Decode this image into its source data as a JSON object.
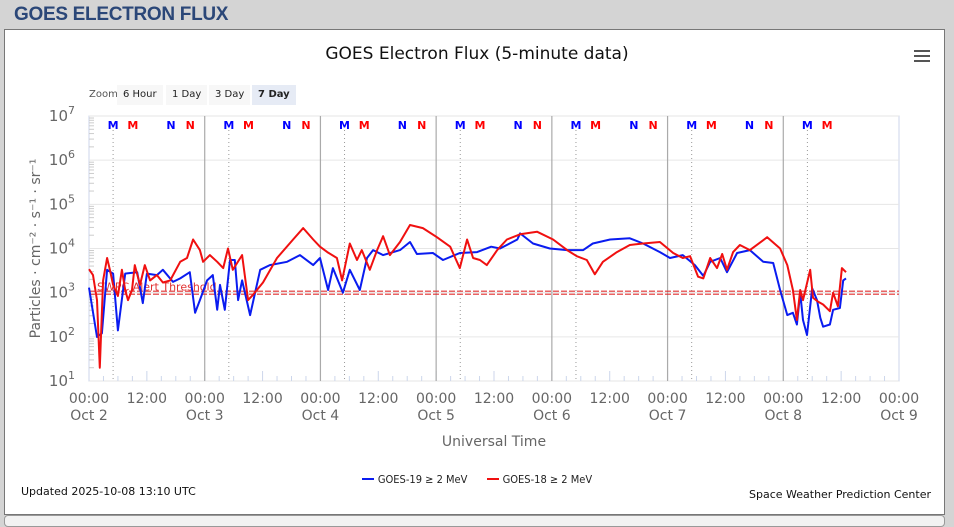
{
  "page": {
    "header_title": "GOES ELECTRON FLUX"
  },
  "chart": {
    "menu_icon": "hamburger-menu-icon",
    "zoom": {
      "label": "Zoom",
      "buttons": [
        "6 Hour",
        "1 Day",
        "3 Day",
        "7 Day"
      ],
      "active": "7 Day"
    },
    "updated": "Updated 2025-10-08 13:10 UTC",
    "credit": "Space Weather Prediction Center"
  },
  "chart_data": {
    "type": "line",
    "title": "GOES Electron Flux (5-minute data)",
    "xlabel": "Universal Time",
    "ylabel": "Particles · cm⁻² · s⁻¹ · sr⁻¹",
    "yscale": "log",
    "ylim": [
      10,
      10000000
    ],
    "xlim": [
      "2025-10-02T00:00Z",
      "2025-10-09T00:00Z"
    ],
    "grid": true,
    "legend_position": "bottom",
    "y_ticks": [
      {
        "base": "10",
        "exp": "1"
      },
      {
        "base": "10",
        "exp": "2"
      },
      {
        "base": "10",
        "exp": "3"
      },
      {
        "base": "10",
        "exp": "4"
      },
      {
        "base": "10",
        "exp": "5"
      },
      {
        "base": "10",
        "exp": "6"
      },
      {
        "base": "10",
        "exp": "7"
      }
    ],
    "x_ticks": [
      {
        "time": "00:00",
        "date": "Oct 2"
      },
      {
        "time": "12:00",
        "date": ""
      },
      {
        "time": "00:00",
        "date": "Oct 3"
      },
      {
        "time": "12:00",
        "date": ""
      },
      {
        "time": "00:00",
        "date": "Oct 4"
      },
      {
        "time": "12:00",
        "date": ""
      },
      {
        "time": "00:00",
        "date": "Oct 5"
      },
      {
        "time": "12:00",
        "date": ""
      },
      {
        "time": "00:00",
        "date": "Oct 6"
      },
      {
        "time": "12:00",
        "date": ""
      },
      {
        "time": "00:00",
        "date": "Oct 7"
      },
      {
        "time": "12:00",
        "date": ""
      },
      {
        "time": "00:00",
        "date": "Oct 8"
      },
      {
        "time": "12:00",
        "date": ""
      },
      {
        "time": "00:00",
        "date": "Oct 9"
      }
    ],
    "threshold": {
      "label": "SWPC Alert Threshold",
      "value": 1000,
      "color": "#e03030"
    },
    "marker_color_blue": "#0000ff",
    "marker_color_red": "#ff0000",
    "markers": [
      {
        "label": "M",
        "color": "blue",
        "time": "2025-10-02T05:00Z"
      },
      {
        "label": "M",
        "color": "red",
        "time": "2025-10-02T09:05Z"
      },
      {
        "label": "N",
        "color": "blue",
        "time": "2025-10-02T17:00Z"
      },
      {
        "label": "N",
        "color": "red",
        "time": "2025-10-02T21:00Z"
      },
      {
        "label": "M",
        "color": "blue",
        "time": "2025-10-03T05:00Z"
      },
      {
        "label": "M",
        "color": "red",
        "time": "2025-10-03T09:05Z"
      },
      {
        "label": "N",
        "color": "blue",
        "time": "2025-10-03T17:00Z"
      },
      {
        "label": "N",
        "color": "red",
        "time": "2025-10-03T21:00Z"
      },
      {
        "label": "M",
        "color": "blue",
        "time": "2025-10-04T05:00Z"
      },
      {
        "label": "M",
        "color": "red",
        "time": "2025-10-04T09:05Z"
      },
      {
        "label": "N",
        "color": "blue",
        "time": "2025-10-04T17:00Z"
      },
      {
        "label": "N",
        "color": "red",
        "time": "2025-10-04T21:00Z"
      },
      {
        "label": "M",
        "color": "blue",
        "time": "2025-10-05T05:00Z"
      },
      {
        "label": "M",
        "color": "red",
        "time": "2025-10-05T09:05Z"
      },
      {
        "label": "N",
        "color": "blue",
        "time": "2025-10-05T17:00Z"
      },
      {
        "label": "N",
        "color": "red",
        "time": "2025-10-05T21:00Z"
      },
      {
        "label": "M",
        "color": "blue",
        "time": "2025-10-06T05:00Z"
      },
      {
        "label": "M",
        "color": "red",
        "time": "2025-10-06T09:05Z"
      },
      {
        "label": "N",
        "color": "blue",
        "time": "2025-10-06T17:00Z"
      },
      {
        "label": "N",
        "color": "red",
        "time": "2025-10-06T21:00Z"
      },
      {
        "label": "M",
        "color": "blue",
        "time": "2025-10-07T05:00Z"
      },
      {
        "label": "M",
        "color": "red",
        "time": "2025-10-07T09:05Z"
      },
      {
        "label": "N",
        "color": "blue",
        "time": "2025-10-07T17:00Z"
      },
      {
        "label": "N",
        "color": "red",
        "time": "2025-10-07T21:00Z"
      },
      {
        "label": "M",
        "color": "blue",
        "time": "2025-10-08T05:00Z"
      },
      {
        "label": "M",
        "color": "red",
        "time": "2025-10-08T09:05Z"
      }
    ],
    "series": [
      {
        "name": "GOES-19 ≥ 2 MeV",
        "color": "#0a1cf0",
        "points": [
          [
            "2025-10-02T00:00Z",
            1300
          ],
          [
            "2025-10-02T01:40Z",
            99
          ],
          [
            "2025-10-02T02:40Z",
            120
          ],
          [
            "2025-10-02T03:45Z",
            3300
          ],
          [
            "2025-10-02T05:00Z",
            2700
          ],
          [
            "2025-10-02T06:00Z",
            140
          ],
          [
            "2025-10-02T07:30Z",
            2700
          ],
          [
            "2025-10-02T10:00Z",
            2900
          ],
          [
            "2025-10-02T11:10Z",
            580
          ],
          [
            "2025-10-02T12:00Z",
            2700
          ],
          [
            "2025-10-02T14:05Z",
            2500
          ],
          [
            "2025-10-02T15:20Z",
            3300
          ],
          [
            "2025-10-02T17:25Z",
            1750
          ],
          [
            "2025-10-02T18:55Z",
            2100
          ],
          [
            "2025-10-02T20:55Z",
            2900
          ],
          [
            "2025-10-02T22:00Z",
            350
          ],
          [
            "2025-10-02T23:00Z",
            680
          ],
          [
            "2025-10-03T00:30Z",
            1900
          ],
          [
            "2025-10-03T01:40Z",
            2500
          ],
          [
            "2025-10-03T02:35Z",
            410
          ],
          [
            "2025-10-03T03:10Z",
            1500
          ],
          [
            "2025-10-03T04:10Z",
            410
          ],
          [
            "2025-10-03T05:15Z",
            5500
          ],
          [
            "2025-10-03T06:15Z",
            5500
          ],
          [
            "2025-10-03T06:55Z",
            680
          ],
          [
            "2025-10-03T07:45Z",
            1900
          ],
          [
            "2025-10-03T09:25Z",
            310
          ],
          [
            "2025-10-03T11:30Z",
            3300
          ],
          [
            "2025-10-03T13:30Z",
            4200
          ],
          [
            "2025-10-03T17:05Z",
            5000
          ],
          [
            "2025-10-03T19:45Z",
            7100
          ],
          [
            "2025-10-03T22:30Z",
            4200
          ],
          [
            "2025-10-03T23:55Z",
            6100
          ],
          [
            "2025-10-04T01:35Z",
            1150
          ],
          [
            "2025-10-04T02:35Z",
            3600
          ],
          [
            "2025-10-04T04:40Z",
            1000
          ],
          [
            "2025-10-04T06:05Z",
            3300
          ],
          [
            "2025-10-04T08:10Z",
            1150
          ],
          [
            "2025-10-04T09:40Z",
            6100
          ],
          [
            "2025-10-04T10:55Z",
            9200
          ],
          [
            "2025-10-04T13:00Z",
            7100
          ],
          [
            "2025-10-04T16:30Z",
            9200
          ],
          [
            "2025-10-04T18:35Z",
            14000
          ],
          [
            "2025-10-04T20:00Z",
            7500
          ],
          [
            "2025-10-04T23:20Z",
            7900
          ],
          [
            "2025-10-05T01:25Z",
            5500
          ],
          [
            "2025-10-05T04:55Z",
            7900
          ],
          [
            "2025-10-05T08:30Z",
            8300
          ],
          [
            "2025-10-05T11:25Z",
            11000
          ],
          [
            "2025-10-05T13:15Z",
            10000
          ],
          [
            "2025-10-05T16:50Z",
            16000
          ],
          [
            "2025-10-05T17:25Z",
            22000
          ],
          [
            "2025-10-05T20:05Z",
            13000
          ],
          [
            "2025-10-05T23:35Z",
            10000
          ],
          [
            "2025-10-06T03:10Z",
            9200
          ],
          [
            "2025-10-06T06:30Z",
            9200
          ],
          [
            "2025-10-06T08:30Z",
            13000
          ],
          [
            "2025-10-06T12:05Z",
            16000
          ],
          [
            "2025-10-06T16:10Z",
            17000
          ],
          [
            "2025-10-06T18:55Z",
            13000
          ],
          [
            "2025-10-06T22:25Z",
            8300
          ],
          [
            "2025-10-07T00:30Z",
            6100
          ],
          [
            "2025-10-07T03:10Z",
            7100
          ],
          [
            "2025-10-07T05:40Z",
            4200
          ],
          [
            "2025-10-07T07:25Z",
            2400
          ],
          [
            "2025-10-07T08:50Z",
            5000
          ],
          [
            "2025-10-07T10:55Z",
            6100
          ],
          [
            "2025-10-07T12:20Z",
            2900
          ],
          [
            "2025-10-07T14:25Z",
            7900
          ],
          [
            "2025-10-07T17:05Z",
            9200
          ],
          [
            "2025-10-07T19:50Z",
            5000
          ],
          [
            "2025-10-07T21:55Z",
            4700
          ],
          [
            "2025-10-07T23:20Z",
            1150
          ],
          [
            "2025-10-08T00:50Z",
            310
          ],
          [
            "2025-10-08T02:00Z",
            350
          ],
          [
            "2025-10-08T02:50Z",
            190
          ],
          [
            "2025-10-08T03:30Z",
            1000
          ],
          [
            "2025-10-08T04:05Z",
            240
          ],
          [
            "2025-10-08T04:55Z",
            110
          ],
          [
            "2025-10-08T06:00Z",
            1250
          ],
          [
            "2025-10-08T07:00Z",
            680
          ],
          [
            "2025-10-08T07:40Z",
            270
          ],
          [
            "2025-10-08T08:15Z",
            170
          ],
          [
            "2025-10-08T09:40Z",
            190
          ],
          [
            "2025-10-08T10:20Z",
            410
          ],
          [
            "2025-10-08T11:45Z",
            450
          ],
          [
            "2025-10-08T12:25Z",
            1900
          ],
          [
            "2025-10-08T13:00Z",
            2100
          ]
        ]
      },
      {
        "name": "GOES-18 ≥ 2 MeV",
        "color": "#f01010",
        "points": [
          [
            "2025-10-02T00:00Z",
            3400
          ],
          [
            "2025-10-02T00:50Z",
            2500
          ],
          [
            "2025-10-02T01:40Z",
            680
          ],
          [
            "2025-10-02T02:15Z",
            20
          ],
          [
            "2025-10-02T02:55Z",
            1900
          ],
          [
            "2025-10-02T03:45Z",
            6100
          ],
          [
            "2025-10-02T04:20Z",
            3300
          ],
          [
            "2025-10-02T05:00Z",
            1500
          ],
          [
            "2025-10-02T06:00Z",
            840
          ],
          [
            "2025-10-02T06:50Z",
            3300
          ],
          [
            "2025-10-02T07:30Z",
            1150
          ],
          [
            "2025-10-02T08:05Z",
            680
          ],
          [
            "2025-10-02T08:55Z",
            1150
          ],
          [
            "2025-10-02T09:30Z",
            4200
          ],
          [
            "2025-10-02T10:35Z",
            1500
          ],
          [
            "2025-10-02T11:35Z",
            4200
          ],
          [
            "2025-10-02T12:40Z",
            1900
          ],
          [
            "2025-10-02T14:05Z",
            2500
          ],
          [
            "2025-10-02T15:20Z",
            1700
          ],
          [
            "2025-10-02T16:50Z",
            1900
          ],
          [
            "2025-10-02T18:55Z",
            5000
          ],
          [
            "2025-10-02T20:20Z",
            6100
          ],
          [
            "2025-10-02T21:35Z",
            16000
          ],
          [
            "2025-10-02T23:00Z",
            9200
          ],
          [
            "2025-10-02T23:40Z",
            5000
          ],
          [
            "2025-10-03T01:05Z",
            7100
          ],
          [
            "2025-10-03T02:35Z",
            5000
          ],
          [
            "2025-10-03T03:50Z",
            3600
          ],
          [
            "2025-10-03T04:50Z",
            10000
          ],
          [
            "2025-10-03T05:50Z",
            3300
          ],
          [
            "2025-10-03T07:45Z",
            7100
          ],
          [
            "2025-10-03T09:00Z",
            680
          ],
          [
            "2025-10-03T10:00Z",
            890
          ],
          [
            "2025-10-03T12:05Z",
            1700
          ],
          [
            "2025-10-03T15:00Z",
            6100
          ],
          [
            "2025-10-03T18:20Z",
            16000
          ],
          [
            "2025-10-03T20:25Z",
            29000
          ],
          [
            "2025-10-03T22:30Z",
            16000
          ],
          [
            "2025-10-03T23:55Z",
            11000
          ],
          [
            "2025-10-04T01:25Z",
            8300
          ],
          [
            "2025-10-04T03:25Z",
            6100
          ],
          [
            "2025-10-04T04:30Z",
            1900
          ],
          [
            "2025-10-04T06:05Z",
            13000
          ],
          [
            "2025-10-04T07:35Z",
            5500
          ],
          [
            "2025-10-04T08:35Z",
            9200
          ],
          [
            "2025-10-04T10:15Z",
            3300
          ],
          [
            "2025-10-04T11:45Z",
            9200
          ],
          [
            "2025-10-04T13:00Z",
            19000
          ],
          [
            "2025-10-04T14:25Z",
            7100
          ],
          [
            "2025-10-04T16:30Z",
            14000
          ],
          [
            "2025-10-04T18:35Z",
            34000
          ],
          [
            "2025-10-04T21:15Z",
            29000
          ],
          [
            "2025-10-05T00:10Z",
            18000
          ],
          [
            "2025-10-05T02:55Z",
            11000
          ],
          [
            "2025-10-05T04:55Z",
            3600
          ],
          [
            "2025-10-05T06:25Z",
            16000
          ],
          [
            "2025-10-05T07:40Z",
            6100
          ],
          [
            "2025-10-05T09:05Z",
            5500
          ],
          [
            "2025-10-05T10:30Z",
            4200
          ],
          [
            "2025-10-05T12:40Z",
            9200
          ],
          [
            "2025-10-05T14:40Z",
            16000
          ],
          [
            "2025-10-05T17:25Z",
            21000
          ],
          [
            "2025-10-05T20:55Z",
            24000
          ],
          [
            "2025-10-06T00:15Z",
            16000
          ],
          [
            "2025-10-06T03:10Z",
            9200
          ],
          [
            "2025-10-06T05:10Z",
            6700
          ],
          [
            "2025-10-06T07:15Z",
            5500
          ],
          [
            "2025-10-06T08:55Z",
            2600
          ],
          [
            "2025-10-06T10:35Z",
            5000
          ],
          [
            "2025-10-06T13:30Z",
            8300
          ],
          [
            "2025-10-06T16:10Z",
            12000
          ],
          [
            "2025-10-06T18:55Z",
            13000
          ],
          [
            "2025-10-06T22:25Z",
            14000
          ],
          [
            "2025-10-07T01:10Z",
            7900
          ],
          [
            "2025-10-07T03:10Z",
            6100
          ],
          [
            "2025-10-07T04:40Z",
            6700
          ],
          [
            "2025-10-07T06:20Z",
            2300
          ],
          [
            "2025-10-07T07:25Z",
            2100
          ],
          [
            "2025-10-07T08:50Z",
            6100
          ],
          [
            "2025-10-07T10:15Z",
            3600
          ],
          [
            "2025-10-07T11:20Z",
            7500
          ],
          [
            "2025-10-07T12:20Z",
            3300
          ],
          [
            "2025-10-07T13:35Z",
            8300
          ],
          [
            "2025-10-07T15:00Z",
            12000
          ],
          [
            "2025-10-07T17:05Z",
            9200
          ],
          [
            "2025-10-07T20:40Z",
            18000
          ],
          [
            "2025-10-07T23:20Z",
            10000
          ],
          [
            "2025-10-08T00:50Z",
            4200
          ],
          [
            "2025-10-08T02:00Z",
            1150
          ],
          [
            "2025-10-08T02:50Z",
            240
          ],
          [
            "2025-10-08T03:30Z",
            1150
          ],
          [
            "2025-10-08T04:05Z",
            680
          ],
          [
            "2025-10-08T05:35Z",
            3300
          ],
          [
            "2025-10-08T06:10Z",
            770
          ],
          [
            "2025-10-08T07:15Z",
            620
          ],
          [
            "2025-10-08T08:15Z",
            540
          ],
          [
            "2025-10-08T09:40Z",
            380
          ],
          [
            "2025-10-08T10:20Z",
            1000
          ],
          [
            "2025-10-08T11:20Z",
            490
          ],
          [
            "2025-10-08T12:10Z",
            3600
          ],
          [
            "2025-10-08T13:00Z",
            2900
          ]
        ]
      }
    ]
  }
}
